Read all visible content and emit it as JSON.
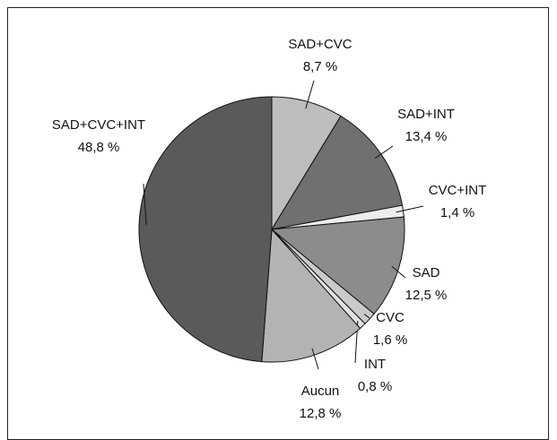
{
  "chart_data": {
    "type": "pie",
    "categories": [
      "SAD+CVC",
      "SAD+INT",
      "CVC+INT",
      "SAD",
      "CVC",
      "INT",
      "Aucun",
      "SAD+CVC+INT"
    ],
    "values": [
      8.7,
      13.4,
      1.4,
      12.5,
      1.6,
      0.8,
      12.8,
      48.8
    ],
    "value_labels": [
      "8,7 %",
      "13,4 %",
      "1,4 %",
      "12,5 %",
      "1,6 %",
      "0,8 %",
      "12,8 %",
      "48,8 %"
    ],
    "colors": [
      "#bdbdbd",
      "#707070",
      "#ededed",
      "#8c8c8c",
      "#cacaca",
      "#e2e2e2",
      "#b3b3b3",
      "#5a5a5a"
    ]
  }
}
